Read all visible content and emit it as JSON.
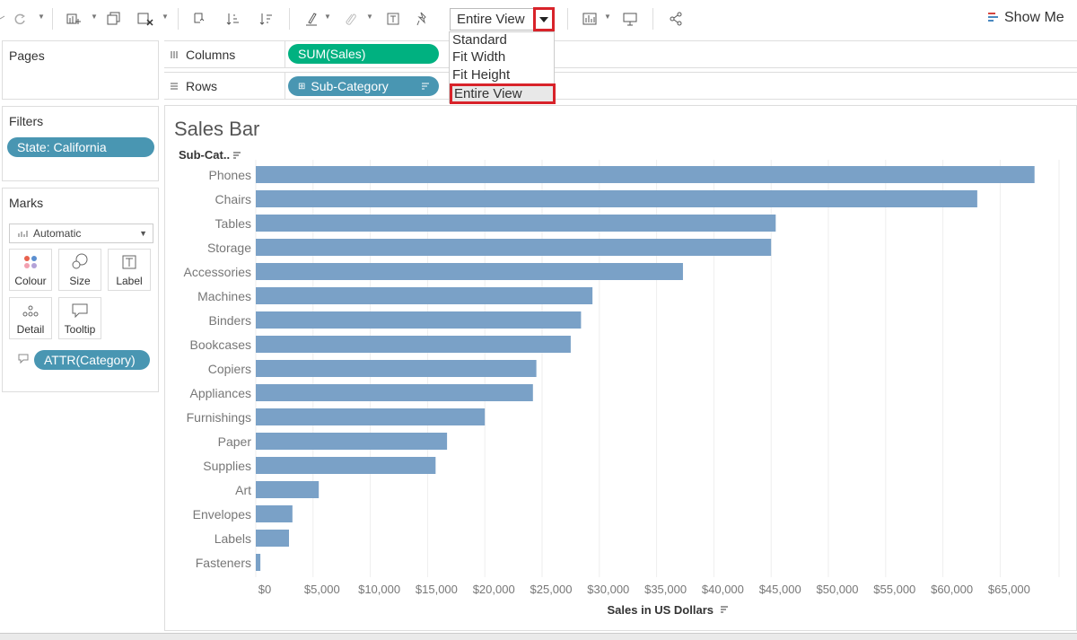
{
  "toolbar": {
    "view_size": "Entire View",
    "show_me": "Show Me",
    "icons": [
      "undo-icon",
      "redo-icon",
      "new-datasource-icon",
      "duplicate-sheet-icon",
      "clear-sheet-icon",
      "swap-icon",
      "sort-asc-icon",
      "sort-desc-icon",
      "highlight-icon",
      "group-icon",
      "label-icon",
      "pin-icon",
      "presentation-icon",
      "share-icon"
    ]
  },
  "view_dropdown": {
    "options": [
      "Standard",
      "Fit Width",
      "Fit Height",
      "Entire View"
    ],
    "selected": "Entire View"
  },
  "pages": {
    "title": "Pages"
  },
  "filters": {
    "title": "Filters",
    "items": [
      "State: California"
    ]
  },
  "marks": {
    "title": "Marks",
    "type": "Automatic",
    "buttons": [
      "Colour",
      "Size",
      "Label",
      "Detail",
      "Tooltip"
    ],
    "fields": [
      "ATTR(Category)"
    ]
  },
  "shelves": {
    "columns": {
      "label": "Columns",
      "pill": "SUM(Sales)"
    },
    "rows": {
      "label": "Rows",
      "pill": "Sub-Category"
    }
  },
  "colors": {
    "bar": "#7aa1c7",
    "pill_blue": "#4996b2",
    "pill_green": "#00b180",
    "highlight": "#d8232a"
  },
  "chart_data": {
    "type": "bar",
    "orientation": "horizontal",
    "title": "Sales Bar",
    "row_header": "Sub-Cat..",
    "xlabel": "Sales in US Dollars",
    "categories": [
      "Phones",
      "Chairs",
      "Tables",
      "Storage",
      "Accessories",
      "Machines",
      "Binders",
      "Bookcases",
      "Copiers",
      "Appliances",
      "Furnishings",
      "Paper",
      "Supplies",
      "Art",
      "Envelopes",
      "Labels",
      "Fasteners"
    ],
    "values": [
      68000,
      63000,
      45400,
      45000,
      37300,
      29400,
      28400,
      27500,
      24500,
      24200,
      20000,
      16700,
      15700,
      5500,
      3200,
      2900,
      400
    ],
    "xlim": [
      0,
      70000
    ],
    "xticks": [
      "$0",
      "$5,000",
      "$10,000",
      "$15,000",
      "$20,000",
      "$25,000",
      "$30,000",
      "$35,000",
      "$40,000",
      "$45,000",
      "$50,000",
      "$55,000",
      "$60,000",
      "$65,000"
    ],
    "grid": true
  }
}
